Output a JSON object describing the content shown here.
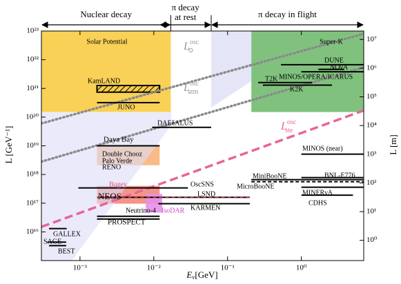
{
  "chart_data": {
    "type": "range",
    "xscale": "log",
    "yscale": "log",
    "xlabel": {
      "main": "E",
      "sub": "ν",
      "unit": "[GeV]"
    },
    "ylabel": "L [GeV⁻¹]",
    "y2label": "L [m]",
    "xlim": [
      0.0003,
      7
    ],
    "ylim": [
      1000000000000000.0,
      1e+23
    ],
    "y2lim": [
      0.197,
      19700000
    ],
    "xticks": [
      {
        "value": 0.001,
        "label": "10⁻³"
      },
      {
        "value": 0.01,
        "label": "10⁻²"
      },
      {
        "value": 0.1,
        "label": "10⁻¹"
      },
      {
        "value": 1,
        "label": "10⁰"
      }
    ],
    "yticks": [
      {
        "value": 1e+16,
        "label": "10¹⁶"
      },
      {
        "value": 1e+17,
        "label": "10¹⁷"
      },
      {
        "value": 1e+18,
        "label": "10¹⁸"
      },
      {
        "value": 1e+19,
        "label": "10¹⁹"
      },
      {
        "value": 1e+20,
        "label": "10²⁰"
      },
      {
        "value": 1e+21,
        "label": "10²¹"
      },
      {
        "value": 1e+22,
        "label": "10²²"
      },
      {
        "value": 1e+23,
        "label": "10²³"
      }
    ],
    "y2ticks": [
      {
        "value": 1,
        "label": "10⁰"
      },
      {
        "value": 10,
        "label": "10¹"
      },
      {
        "value": 100,
        "label": "10²"
      },
      {
        "value": 1000,
        "label": "10³"
      },
      {
        "value": 10000,
        "label": "10⁴"
      },
      {
        "value": 100000,
        "label": "10⁵"
      },
      {
        "value": 1000000,
        "label": "10⁶"
      },
      {
        "value": 10000000,
        "label": "10⁷"
      }
    ],
    "regions": [
      {
        "label": [
          "Nuclear decay"
        ],
        "x": [
          0.0003,
          0.017
        ]
      },
      {
        "label": [
          "π decay",
          "at rest"
        ],
        "x": [
          0.012,
          0.06
        ]
      },
      {
        "label": [
          "π decay in flight"
        ],
        "x": [
          0.06,
          7
        ]
      }
    ],
    "boxes": [
      {
        "labels": [
          "Solar Potential"
        ],
        "x": [
          0.0003,
          0.017
        ],
        "y": [
          1.5e+20,
          1e+23
        ],
        "color": "#f8cc45"
      },
      {
        "labels": [
          "Super-K"
        ],
        "x": [
          0.21,
          7
        ],
        "y": [
          1.5e+20,
          1e+23
        ],
        "color": "#72bb6f"
      },
      {
        "labels": [
          "KamLAND"
        ],
        "x": [
          0.0017,
          0.012
        ],
        "y": [
          7.4e+20,
          1.26e+21
        ],
        "color": "hatch"
      },
      {
        "labels": [
          "Double Chooz",
          "Palo Verde",
          "RENO"
        ],
        "x": [
          0.0017,
          0.012
        ],
        "y": [
          2.1e+18,
          1e+19
        ],
        "color": "#f7b47a"
      },
      {
        "labels": [
          "Bugey",
          "NEOS"
        ],
        "x": [
          0.0017,
          0.012
        ],
        "y": [
          9.6e+16,
          4e+17
        ],
        "color": "#f28a7a"
      },
      {
        "labels": [
          "IsoDAR"
        ],
        "x": [
          0.0078,
          0.013
        ],
        "y": [
          4.7e+16,
          2.1e+17
        ],
        "color": "#e590e8"
      }
    ],
    "lines": [
      {
        "name": "DUNE",
        "x": [
          0.53,
          7
        ],
        "y": 6.7e+21
      },
      {
        "name": "NOνA",
        "x": [
          1.7,
          3.8
        ],
        "y": 4.6e+21
      },
      {
        "name": "MINOS/OPERA/ICARUS",
        "x": [
          1.0,
          7
        ],
        "y": 3.8e+21
      },
      {
        "name": "T2K",
        "x": [
          0.26,
          1.4
        ],
        "y": 1.6e+21
      },
      {
        "name": "K2K",
        "x": [
          0.3,
          2.6
        ],
        "y": 1.3e+21
      },
      {
        "name": "JUNO",
        "x": [
          0.0017,
          0.012
        ],
        "y": 3.2e+20
      },
      {
        "name": "DAEδALUS",
        "x": [
          0.0095,
          0.06
        ],
        "y": 4.4e+19
      },
      {
        "name": "Daya Bay",
        "x": [
          0.0017,
          0.012
        ],
        "y": 1e+19
      },
      {
        "name": "MINOS (near)",
        "x": [
          1.0,
          7
        ],
        "y": 5.1e+18
      },
      {
        "name": "BNL-E776",
        "x": [
          1.0,
          7
        ],
        "y": 7.8e+17
      },
      {
        "name": "MiniBooNE",
        "x": [
          0.21,
          7
        ],
        "y": 6.6e+17
      },
      {
        "name": "MicroBooNE",
        "x": [
          0.21,
          7
        ],
        "y": 5.6e+17,
        "style": "dashed"
      },
      {
        "name": "MINERνA",
        "x": [
          1.0,
          7
        ],
        "y": 3.6e+17
      },
      {
        "name": "CDHS",
        "x": [
          1.0,
          5.0
        ],
        "y": 1.9e+17
      },
      {
        "name": "OscSNS",
        "x": [
          0.00095,
          0.029
        ],
        "y": 3.4e+17
      },
      {
        "name": "LSND",
        "x": [
          0.0017,
          0.2
        ],
        "y": 1.6e+17,
        "style": "red-dashed"
      },
      {
        "name": "KARMEN",
        "x": [
          0.0115,
          0.2
        ],
        "y": 9.6e+16
      },
      {
        "name": "Neutrino-4",
        "x": [
          0.0017,
          0.012
        ],
        "y": 3.5e+16
      },
      {
        "name": "PROSPECT",
        "x": [
          0.0017,
          0.012
        ],
        "y": 2.8e+16
      },
      {
        "name": "GALLEX",
        "x": [
          0.00038,
          0.00066
        ],
        "y": 1.3e+16
      },
      {
        "name": "SAGE",
        "x": [
          0.00036,
          0.00065
        ],
        "y": 4400000000000000.0
      },
      {
        "name": "BEST",
        "x": [
          0.00038,
          0.00065
        ],
        "y": 3300000000000000.0
      }
    ],
    "curves": [
      {
        "main": "L",
        "sup": "osc",
        "sub": "⊙",
        "x": [
          0.0003,
          7
        ],
        "y": [
          6e+19,
          8e+22
        ],
        "color": "#8a8a8a",
        "style": "dotted"
      },
      {
        "main": "L",
        "sup": "osc",
        "sub": "atm",
        "x": [
          0.0003,
          7
        ],
        "y": [
          2.8e+18,
          5.4e+21
        ],
        "color": "#8a8a8a",
        "style": "dotted"
      },
      {
        "main": "L",
        "sup": "osc",
        "sub": "ste",
        "x": [
          0.0003,
          7
        ],
        "y": [
          1.5e+16,
          1.7e+20
        ],
        "color": "#e8649a",
        "style": "dashed"
      }
    ]
  }
}
